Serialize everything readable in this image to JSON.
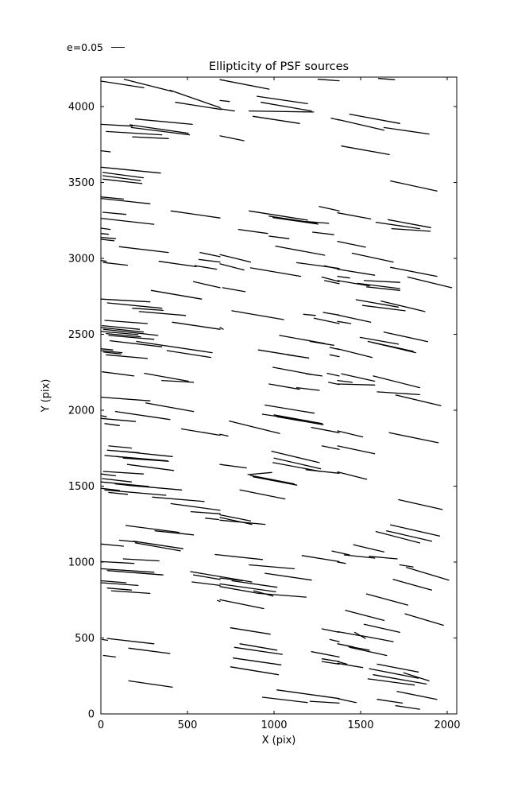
{
  "page": {
    "background": "#ffffff",
    "axes_color": "#000000"
  },
  "legend": {
    "label": "e=0.05",
    "sample": "line"
  },
  "chart_data": {
    "type": "scatter",
    "subtype": "ellipticity-whisker-segments",
    "title": "Ellipticity of PSF sources",
    "xlabel": "X (pix)",
    "ylabel": "Y (pix)",
    "xlim": [
      0,
      2055
    ],
    "ylim": [
      0,
      4194
    ],
    "x_ticks": [
      0,
      500,
      1000,
      1500,
      2000
    ],
    "y_ticks": [
      0,
      500,
      1000,
      1500,
      2000,
      2500,
      3000,
      3500,
      4000
    ],
    "grid": false,
    "legend_position": "upper-left-outside",
    "line_color": "#000000",
    "segments": [
      [
        0,
        4168,
        248,
        4124
      ],
      [
        135,
        4180,
        413,
        4100
      ],
      [
        401,
        4107,
        688,
        3993
      ],
      [
        431,
        4028,
        696,
        3981
      ],
      [
        199,
        3918,
        528,
        3883
      ],
      [
        0,
        3883,
        183,
        3871
      ],
      [
        168,
        3880,
        505,
        3824
      ],
      [
        176,
        3862,
        512,
        3814
      ],
      [
        31,
        3836,
        352,
        3814
      ],
      [
        183,
        3801,
        390,
        3789
      ],
      [
        0,
        3709,
        54,
        3702
      ],
      [
        0,
        3601,
        344,
        3562
      ],
      [
        12,
        3566,
        245,
        3531
      ],
      [
        12,
        3545,
        229,
        3513
      ],
      [
        12,
        3522,
        237,
        3493
      ],
      [
        0,
        3405,
        130,
        3391
      ],
      [
        0,
        3395,
        283,
        3360
      ],
      [
        12,
        3304,
        145,
        3290
      ],
      [
        405,
        3313,
        688,
        3266
      ],
      [
        0,
        3264,
        306,
        3225
      ],
      [
        0,
        3199,
        54,
        3191
      ],
      [
        0,
        3164,
        43,
        3159
      ],
      [
        688,
        4177,
        971,
        4115
      ],
      [
        1254,
        4180,
        1376,
        4170
      ],
      [
        902,
        4068,
        1193,
        4019
      ],
      [
        688,
        4040,
        742,
        4033
      ],
      [
        925,
        4028,
        1216,
        3971
      ],
      [
        688,
        3985,
        772,
        3971
      ],
      [
        856,
        3971,
        1228,
        3964
      ],
      [
        879,
        3936,
        1147,
        3889
      ],
      [
        1330,
        3924,
        1376,
        3911
      ],
      [
        688,
        3807,
        826,
        3775
      ],
      [
        1261,
        3342,
        1376,
        3313
      ],
      [
        856,
        3313,
        1193,
        3252
      ],
      [
        971,
        3278,
        1246,
        3231
      ],
      [
        994,
        3269,
        1254,
        3226
      ],
      [
        1185,
        3243,
        1315,
        3231
      ],
      [
        795,
        3191,
        963,
        3164
      ],
      [
        1223,
        3173,
        1345,
        3156
      ],
      [
        1604,
        4185,
        1696,
        4177
      ],
      [
        1436,
        3950,
        1726,
        3889
      ],
      [
        1367,
        3915,
        1635,
        3845
      ],
      [
        1635,
        3862,
        1895,
        3819
      ],
      [
        1390,
        3740,
        1665,
        3684
      ],
      [
        1673,
        3510,
        1941,
        3444
      ],
      [
        1367,
        3300,
        1558,
        3260
      ],
      [
        1589,
        3238,
        1841,
        3196
      ],
      [
        1658,
        3255,
        1905,
        3203
      ],
      [
        1680,
        3196,
        1902,
        3179
      ],
      [
        0,
        3138,
        84,
        3130
      ],
      [
        0,
        3126,
        76,
        3116
      ],
      [
        107,
        3077,
        390,
        3039
      ],
      [
        573,
        3039,
        688,
        3011
      ],
      [
        336,
        2981,
        550,
        2946
      ],
      [
        0,
        2986,
        31,
        2981
      ],
      [
        15,
        2973,
        153,
        2955
      ],
      [
        566,
        2993,
        688,
        2976
      ],
      [
        543,
        2952,
        668,
        2929
      ],
      [
        535,
        2847,
        688,
        2807
      ],
      [
        291,
        2789,
        581,
        2732
      ],
      [
        0,
        2732,
        283,
        2714
      ],
      [
        38,
        2707,
        352,
        2672
      ],
      [
        183,
        2672,
        359,
        2658
      ],
      [
        222,
        2650,
        489,
        2624
      ],
      [
        23,
        2592,
        268,
        2571
      ],
      [
        413,
        2580,
        688,
        2533
      ],
      [
        8,
        2557,
        222,
        2533
      ],
      [
        0,
        2545,
        245,
        2515
      ],
      [
        15,
        2533,
        329,
        2493
      ],
      [
        0,
        2519,
        214,
        2498
      ],
      [
        31,
        2505,
        229,
        2484
      ],
      [
        46,
        2493,
        306,
        2467
      ],
      [
        53,
        2458,
        352,
        2418
      ],
      [
        206,
        2453,
        642,
        2379
      ],
      [
        0,
        2405,
        69,
        2397
      ],
      [
        0,
        2393,
        122,
        2379
      ],
      [
        15,
        2383,
        115,
        2371
      ],
      [
        382,
        2393,
        635,
        2348
      ],
      [
        31,
        2365,
        268,
        2341
      ],
      [
        8,
        2253,
        191,
        2226
      ],
      [
        252,
        2243,
        505,
        2191
      ],
      [
        352,
        2196,
        535,
        2184
      ],
      [
        971,
        3147,
        1086,
        3130
      ],
      [
        1009,
        3081,
        1292,
        3021
      ],
      [
        688,
        3025,
        864,
        2976
      ],
      [
        1131,
        2972,
        1376,
        2934
      ],
      [
        688,
        2964,
        826,
        2924
      ],
      [
        864,
        2938,
        1154,
        2882
      ],
      [
        1292,
        2951,
        1376,
        2929
      ],
      [
        1277,
        2877,
        1376,
        2847
      ],
      [
        1292,
        2854,
        1376,
        2833
      ],
      [
        703,
        2807,
        833,
        2781
      ],
      [
        757,
        2655,
        1055,
        2597
      ],
      [
        1170,
        2632,
        1239,
        2624
      ],
      [
        1284,
        2644,
        1376,
        2627
      ],
      [
        1231,
        2606,
        1376,
        2571
      ],
      [
        688,
        2545,
        706,
        2533
      ],
      [
        1032,
        2493,
        1292,
        2440
      ],
      [
        1208,
        2453,
        1345,
        2428
      ],
      [
        910,
        2397,
        1124,
        2358
      ],
      [
        1078,
        2365,
        1200,
        2344
      ],
      [
        1323,
        2414,
        1376,
        2400
      ],
      [
        1323,
        2365,
        1376,
        2353
      ],
      [
        994,
        2283,
        1216,
        2236
      ],
      [
        1185,
        2240,
        1277,
        2226
      ],
      [
        1307,
        2243,
        1376,
        2226
      ],
      [
        971,
        2173,
        1147,
        2138
      ],
      [
        1131,
        2149,
        1261,
        2131
      ],
      [
        1315,
        2184,
        1376,
        2170
      ],
      [
        1367,
        3112,
        1528,
        3074
      ],
      [
        1451,
        3034,
        1688,
        2976
      ],
      [
        1367,
        2929,
        1581,
        2889
      ],
      [
        1673,
        2941,
        1941,
        2882
      ],
      [
        1367,
        2882,
        1436,
        2871
      ],
      [
        1367,
        2854,
        1551,
        2819
      ],
      [
        1482,
        2836,
        1726,
        2801
      ],
      [
        1520,
        2854,
        1726,
        2842
      ],
      [
        1772,
        2877,
        2025,
        2807
      ],
      [
        1535,
        2812,
        1726,
        2789
      ],
      [
        1474,
        2728,
        1718,
        2679
      ],
      [
        1619,
        2719,
        1871,
        2650
      ],
      [
        1512,
        2690,
        1757,
        2655
      ],
      [
        1367,
        2627,
        1558,
        2580
      ],
      [
        1367,
        2585,
        1443,
        2571
      ],
      [
        1635,
        2515,
        1887,
        2452
      ],
      [
        1497,
        2480,
        1718,
        2435
      ],
      [
        1543,
        2453,
        1803,
        2388
      ],
      [
        1566,
        2446,
        1818,
        2379
      ],
      [
        1367,
        2405,
        1566,
        2348
      ],
      [
        1367,
        2196,
        1451,
        2184
      ],
      [
        1390,
        2240,
        1581,
        2191
      ],
      [
        1573,
        2226,
        1841,
        2149
      ],
      [
        1367,
        2173,
        1581,
        2166
      ],
      [
        1596,
        2121,
        1841,
        2103
      ],
      [
        0,
        2086,
        283,
        2062
      ],
      [
        260,
        2048,
        535,
        1992
      ],
      [
        84,
        1992,
        398,
        1939
      ],
      [
        0,
        1964,
        31,
        1957
      ],
      [
        0,
        1946,
        199,
        1926
      ],
      [
        23,
        1912,
        107,
        1899
      ],
      [
        466,
        1877,
        688,
        1835
      ],
      [
        46,
        1765,
        176,
        1751
      ],
      [
        38,
        1737,
        222,
        1720
      ],
      [
        115,
        1730,
        413,
        1695
      ],
      [
        23,
        1702,
        183,
        1685
      ],
      [
        92,
        1695,
        382,
        1667
      ],
      [
        130,
        1685,
        390,
        1664
      ],
      [
        153,
        1643,
        420,
        1603
      ],
      [
        15,
        1597,
        245,
        1580
      ],
      [
        0,
        1580,
        84,
        1568
      ],
      [
        8,
        1550,
        176,
        1528
      ],
      [
        0,
        1528,
        275,
        1498
      ],
      [
        84,
        1515,
        229,
        1498
      ],
      [
        145,
        1507,
        466,
        1475
      ],
      [
        0,
        1486,
        107,
        1472
      ],
      [
        23,
        1475,
        375,
        1440
      ],
      [
        46,
        1458,
        153,
        1446
      ],
      [
        298,
        1428,
        596,
        1399
      ],
      [
        405,
        1385,
        688,
        1341
      ],
      [
        520,
        1332,
        688,
        1318
      ],
      [
        604,
        1289,
        680,
        1280
      ],
      [
        145,
        1241,
        451,
        1196
      ],
      [
        313,
        1206,
        535,
        1179
      ],
      [
        107,
        1144,
        214,
        1132
      ],
      [
        0,
        1119,
        130,
        1105
      ],
      [
        191,
        1137,
        474,
        1088
      ],
      [
        199,
        1126,
        459,
        1074
      ],
      [
        948,
        2034,
        1231,
        1981
      ],
      [
        933,
        1974,
        1200,
        1929
      ],
      [
        1001,
        1969,
        1277,
        1912
      ],
      [
        1017,
        1957,
        1284,
        1905
      ],
      [
        742,
        1929,
        1032,
        1847
      ],
      [
        1216,
        1887,
        1376,
        1852
      ],
      [
        688,
        1842,
        734,
        1830
      ],
      [
        1277,
        1765,
        1376,
        1742
      ],
      [
        986,
        1730,
        1261,
        1655
      ],
      [
        1001,
        1685,
        1269,
        1615
      ],
      [
        994,
        1655,
        1269,
        1597
      ],
      [
        688,
        1643,
        841,
        1620
      ],
      [
        1185,
        1608,
        1376,
        1585
      ],
      [
        849,
        1576,
        986,
        1590
      ],
      [
        864,
        1571,
        1116,
        1515
      ],
      [
        879,
        1562,
        1131,
        1507
      ],
      [
        803,
        1475,
        1063,
        1416
      ],
      [
        688,
        1311,
        864,
        1271
      ],
      [
        688,
        1294,
        872,
        1248
      ],
      [
        688,
        1276,
        948,
        1248
      ],
      [
        1703,
        2100,
        1963,
        2030
      ],
      [
        1367,
        1864,
        1512,
        1824
      ],
      [
        1665,
        1852,
        1948,
        1786
      ],
      [
        1367,
        1765,
        1581,
        1713
      ],
      [
        1367,
        1594,
        1535,
        1545
      ],
      [
        1719,
        1411,
        1971,
        1346
      ],
      [
        1673,
        1245,
        1956,
        1172
      ],
      [
        1650,
        1206,
        1910,
        1137
      ],
      [
        1589,
        1201,
        1841,
        1126
      ],
      [
        1459,
        1114,
        1635,
        1067
      ],
      [
        130,
        1021,
        336,
        1008
      ],
      [
        0,
        1003,
        191,
        991
      ],
      [
        0,
        956,
        306,
        933
      ],
      [
        38,
        944,
        352,
        916
      ],
      [
        199,
        930,
        359,
        916
      ],
      [
        535,
        916,
        688,
        886
      ],
      [
        0,
        877,
        145,
        864
      ],
      [
        0,
        864,
        214,
        846
      ],
      [
        527,
        869,
        688,
        846
      ],
      [
        38,
        829,
        176,
        816
      ],
      [
        61,
        811,
        283,
        794
      ],
      [
        673,
        747,
        688,
        741
      ],
      [
        38,
        497,
        306,
        462
      ],
      [
        8,
        490,
        38,
        485
      ],
      [
        161,
        433,
        398,
        398
      ],
      [
        15,
        385,
        84,
        375
      ],
      [
        161,
        218,
        413,
        176
      ],
      [
        518,
        937,
        871,
        869
      ],
      [
        660,
        1050,
        933,
        1017
      ],
      [
        1162,
        1043,
        1376,
        1003
      ],
      [
        856,
        982,
        1116,
        956
      ],
      [
        948,
        926,
        1216,
        881
      ],
      [
        688,
        895,
        818,
        877
      ],
      [
        757,
        877,
        1017,
        834
      ],
      [
        688,
        856,
        1009,
        804
      ],
      [
        688,
        839,
        910,
        794
      ],
      [
        883,
        811,
        994,
        776
      ],
      [
        910,
        794,
        1185,
        769
      ],
      [
        688,
        752,
        940,
        694
      ],
      [
        749,
        567,
        978,
        525
      ],
      [
        1277,
        560,
        1376,
        537
      ],
      [
        1322,
        490,
        1376,
        476
      ],
      [
        803,
        462,
        1017,
        420
      ],
      [
        772,
        438,
        1047,
        392
      ],
      [
        1216,
        410,
        1376,
        375
      ],
      [
        764,
        368,
        1040,
        323
      ],
      [
        1277,
        363,
        1376,
        345
      ],
      [
        1277,
        345,
        1376,
        328
      ],
      [
        749,
        310,
        1025,
        258
      ],
      [
        1017,
        158,
        1376,
        101
      ],
      [
        933,
        110,
        1192,
        75
      ],
      [
        1208,
        83,
        1376,
        71
      ],
      [
        1405,
        1047,
        1581,
        1026
      ],
      [
        1550,
        1038,
        1711,
        1021
      ],
      [
        1367,
        1000,
        1413,
        991
      ],
      [
        1726,
        982,
        1803,
        968
      ],
      [
        1765,
        965,
        2009,
        881
      ],
      [
        1688,
        886,
        1910,
        816
      ],
      [
        1535,
        790,
        1772,
        717
      ],
      [
        1413,
        682,
        1635,
        616
      ],
      [
        1757,
        659,
        1978,
        584
      ],
      [
        1520,
        590,
        1726,
        537
      ],
      [
        1367,
        542,
        1497,
        515
      ],
      [
        1466,
        537,
        1527,
        497
      ],
      [
        1505,
        515,
        1688,
        476
      ],
      [
        1367,
        462,
        1459,
        441
      ],
      [
        1428,
        445,
        1550,
        420
      ],
      [
        1436,
        438,
        1650,
        385
      ],
      [
        1367,
        345,
        1420,
        328
      ],
      [
        1367,
        333,
        1512,
        305
      ],
      [
        1596,
        328,
        1833,
        276
      ],
      [
        1550,
        298,
        1833,
        235
      ],
      [
        1573,
        258,
        1879,
        197
      ],
      [
        1749,
        270,
        1895,
        218
      ],
      [
        1543,
        231,
        1810,
        190
      ],
      [
        1711,
        148,
        1940,
        96
      ],
      [
        1596,
        96,
        1741,
        71
      ],
      [
        1367,
        101,
        1474,
        75
      ],
      [
        1703,
        54,
        1841,
        31
      ],
      [
        1335,
        1073,
        1436,
        1047
      ]
    ]
  }
}
